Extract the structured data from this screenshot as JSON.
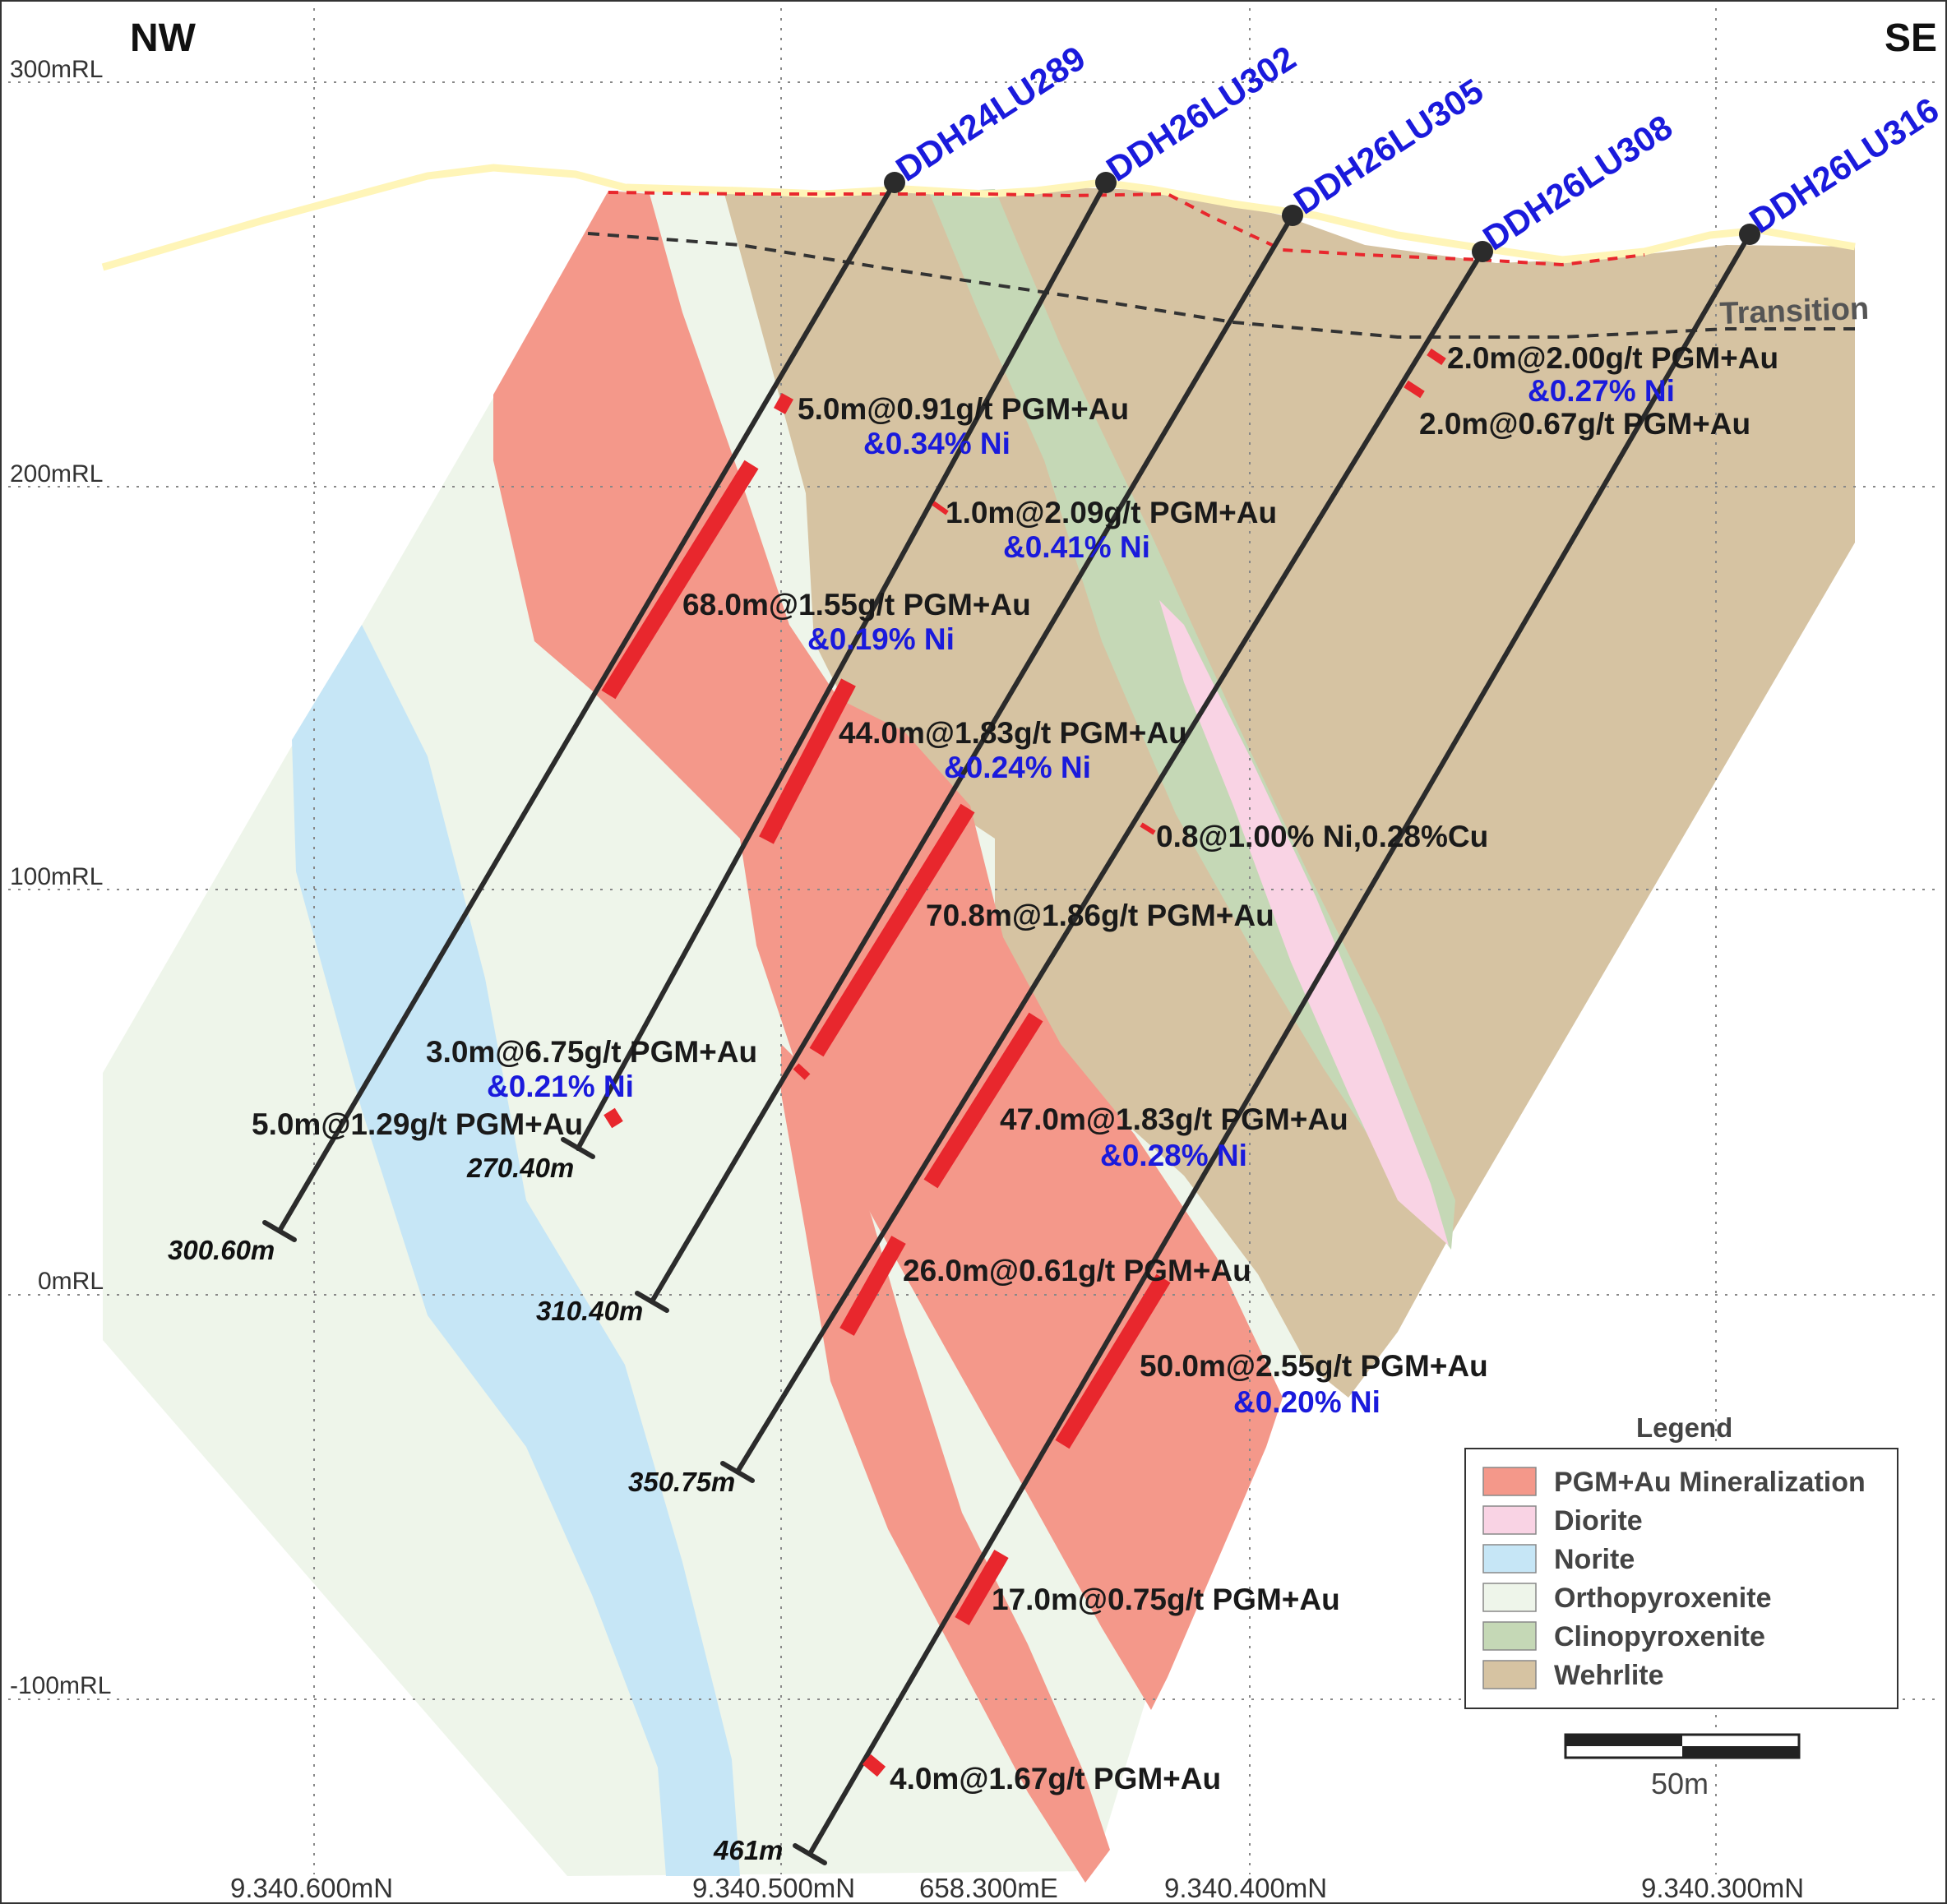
{
  "directions": {
    "left": "NW",
    "right": "SE"
  },
  "rl_labels": [
    "300mRL",
    "200mRL",
    "100mRL",
    "0mRL",
    "-100mRL"
  ],
  "transition_label": "Transition",
  "drillholes": [
    {
      "name": "DDH24LU289",
      "end_depth": "300.60m"
    },
    {
      "name": "DDH26LU302",
      "end_depth": "270.40m"
    },
    {
      "name": "DDH26LU305",
      "end_depth": "310.40m"
    },
    {
      "name": "DDH26LU308",
      "end_depth": "350.75m"
    },
    {
      "name": "DDH26LU316",
      "end_depth": "461m"
    }
  ],
  "intercepts": [
    {
      "main": "5.0m@0.91g/t PGM+Au",
      "ni": "&0.34% Ni"
    },
    {
      "main": "1.0m@2.09g/t PGM+Au",
      "ni": "&0.41% Ni"
    },
    {
      "main": "68.0m@1.55g/t PGM+Au",
      "ni": "&0.19% Ni"
    },
    {
      "main": "44.0m@1.83g/t PGM+Au",
      "ni": "&0.24% Ni"
    },
    {
      "main": "0.8@1.00% Ni,0.28%Cu",
      "ni": ""
    },
    {
      "main": "70.8m@1.86g/t PGM+Au",
      "ni": ""
    },
    {
      "main": "3.0m@6.75g/t PGM+Au",
      "ni": "&0.21% Ni"
    },
    {
      "main": "5.0m@1.29g/t PGM+Au",
      "ni": ""
    },
    {
      "main": "47.0m@1.83g/t PGM+Au",
      "ni": "&0.28% Ni"
    },
    {
      "main": "26.0m@0.61g/t PGM+Au",
      "ni": ""
    },
    {
      "main": "50.0m@2.55g/t PGM+Au",
      "ni": "&0.20% Ni"
    },
    {
      "main": "17.0m@0.75g/t PGM+Au",
      "ni": ""
    },
    {
      "main": "4.0m@1.67g/t PGM+Au",
      "ni": ""
    },
    {
      "main": "2.0m@2.00g/t PGM+Au",
      "ni": "&0.27% Ni"
    },
    {
      "main": "2.0m@0.67g/t PGM+Au",
      "ni": ""
    }
  ],
  "coordinates": [
    "9.340.600mN",
    "9.340.500mN",
    "658.300mE",
    "9.340.400mN",
    "9.340.300mN"
  ],
  "legend": {
    "title": "Legend",
    "items": [
      {
        "label": "PGM+Au Mineralization",
        "color": "#f4988a"
      },
      {
        "label": "Diorite",
        "color": "#f9d3e4"
      },
      {
        "label": "Norite",
        "color": "#c6e6f6"
      },
      {
        "label": "Orthopyroxenite",
        "color": "#eef5ea"
      },
      {
        "label": "Clinopyroxenite",
        "color": "#c5d8b6"
      },
      {
        "label": "Wehrlite",
        "color": "#d6c3a2"
      }
    ]
  },
  "scale_bar": {
    "label": "50m"
  },
  "colors": {
    "intercept_bar": "#e8272d",
    "drillhole": "#2b2b2b",
    "hole_label": "#1a1adc",
    "topography": "#fff5b8"
  }
}
